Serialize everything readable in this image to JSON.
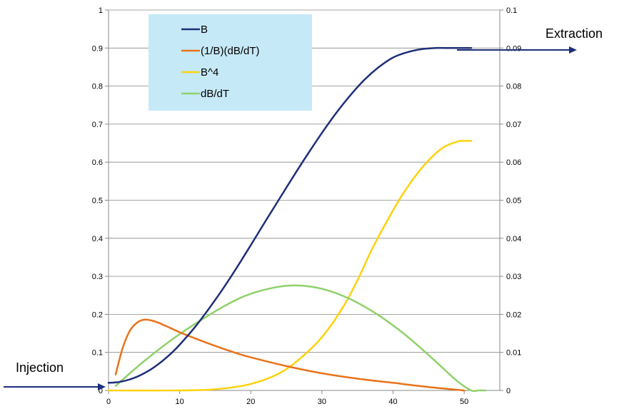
{
  "chart_data": {
    "type": "line",
    "title": "",
    "xlabel": "",
    "ylabel": "",
    "xlim": [
      0,
      55
    ],
    "ylim": [
      0,
      1
    ],
    "y2lim": [
      0,
      0.1
    ],
    "grid": true,
    "x_ticks": [
      "0",
      "10",
      "20",
      "30",
      "40",
      "50"
    ],
    "y_ticks": [
      "0",
      "0.1",
      "0.2",
      "0.3",
      "0.4",
      "0.5",
      "0.6",
      "0.7",
      "0.8",
      "0.9",
      "1"
    ],
    "y2_ticks": [
      "0",
      "0.01",
      "0.02",
      "0.03",
      "0.04",
      "0.05",
      "0.06",
      "0.07",
      "0.08",
      "0.09",
      "0.1"
    ],
    "legend": {
      "placement": "top-left",
      "background": "#c6e9f7",
      "entries": [
        "B",
        "(1/B)(dB/dT)",
        "B^4",
        "dB/dT"
      ]
    },
    "series": [
      {
        "name": "B",
        "axis": "left",
        "color": "#1f2f7a",
        "x": [
          0,
          1,
          2,
          3,
          4,
          5,
          6,
          7,
          8,
          9,
          10,
          12,
          14,
          16,
          18,
          20,
          22,
          24,
          26,
          28,
          30,
          32,
          34,
          36,
          38,
          40,
          42,
          44,
          46,
          48,
          50,
          51
        ],
        "y": [
          0.02,
          0.021,
          0.024,
          0.029,
          0.036,
          0.045,
          0.056,
          0.069,
          0.084,
          0.101,
          0.12,
          0.163,
          0.212,
          0.265,
          0.322,
          0.382,
          0.443,
          0.503,
          0.563,
          0.621,
          0.677,
          0.729,
          0.776,
          0.817,
          0.85,
          0.875,
          0.889,
          0.897,
          0.9,
          0.9,
          0.9,
          0.9
        ]
      },
      {
        "name": "(1/B)(dB/dT)",
        "axis": "right",
        "color": "#e8731a",
        "x": [
          1,
          2,
          3,
          4,
          5,
          6,
          7,
          8,
          10,
          12,
          15,
          18,
          20,
          25,
          30,
          35,
          40,
          45,
          50
        ],
        "y": [
          0.0042,
          0.0112,
          0.0157,
          0.0178,
          0.0186,
          0.0184,
          0.0178,
          0.017,
          0.0153,
          0.0138,
          0.0117,
          0.0098,
          0.0087,
          0.0064,
          0.0045,
          0.0031,
          0.002,
          0.0009,
          0.0
        ]
      },
      {
        "name": "B^4",
        "axis": "left",
        "color": "#fdd20e",
        "x": [
          0,
          10,
          15,
          20,
          24,
          27,
          30,
          33,
          35,
          37,
          39,
          41,
          43,
          45,
          47,
          49,
          50,
          51
        ],
        "y": [
          0.0,
          0.0,
          0.003,
          0.017,
          0.045,
          0.085,
          0.14,
          0.22,
          0.29,
          0.37,
          0.44,
          0.505,
          0.56,
          0.605,
          0.638,
          0.654,
          0.656,
          0.656
        ]
      },
      {
        "name": "dB/dT",
        "axis": "right",
        "color": "#8fd16a",
        "x": [
          1,
          3,
          5,
          8,
          10,
          13,
          16,
          19,
          22,
          25,
          28,
          31,
          34,
          37,
          40,
          43,
          46,
          49,
          51,
          52,
          53
        ],
        "y": [
          0.0012,
          0.0045,
          0.0077,
          0.0121,
          0.0148,
          0.0185,
          0.0219,
          0.0247,
          0.0265,
          0.0275,
          0.0274,
          0.0262,
          0.024,
          0.0209,
          0.0171,
          0.0126,
          0.0076,
          0.0025,
          0.0,
          0.0,
          0.0
        ]
      }
    ],
    "annotations": [
      {
        "label": "Injection",
        "text": "Injection"
      },
      {
        "label": "Extraction",
        "text": "Extraction"
      }
    ]
  }
}
